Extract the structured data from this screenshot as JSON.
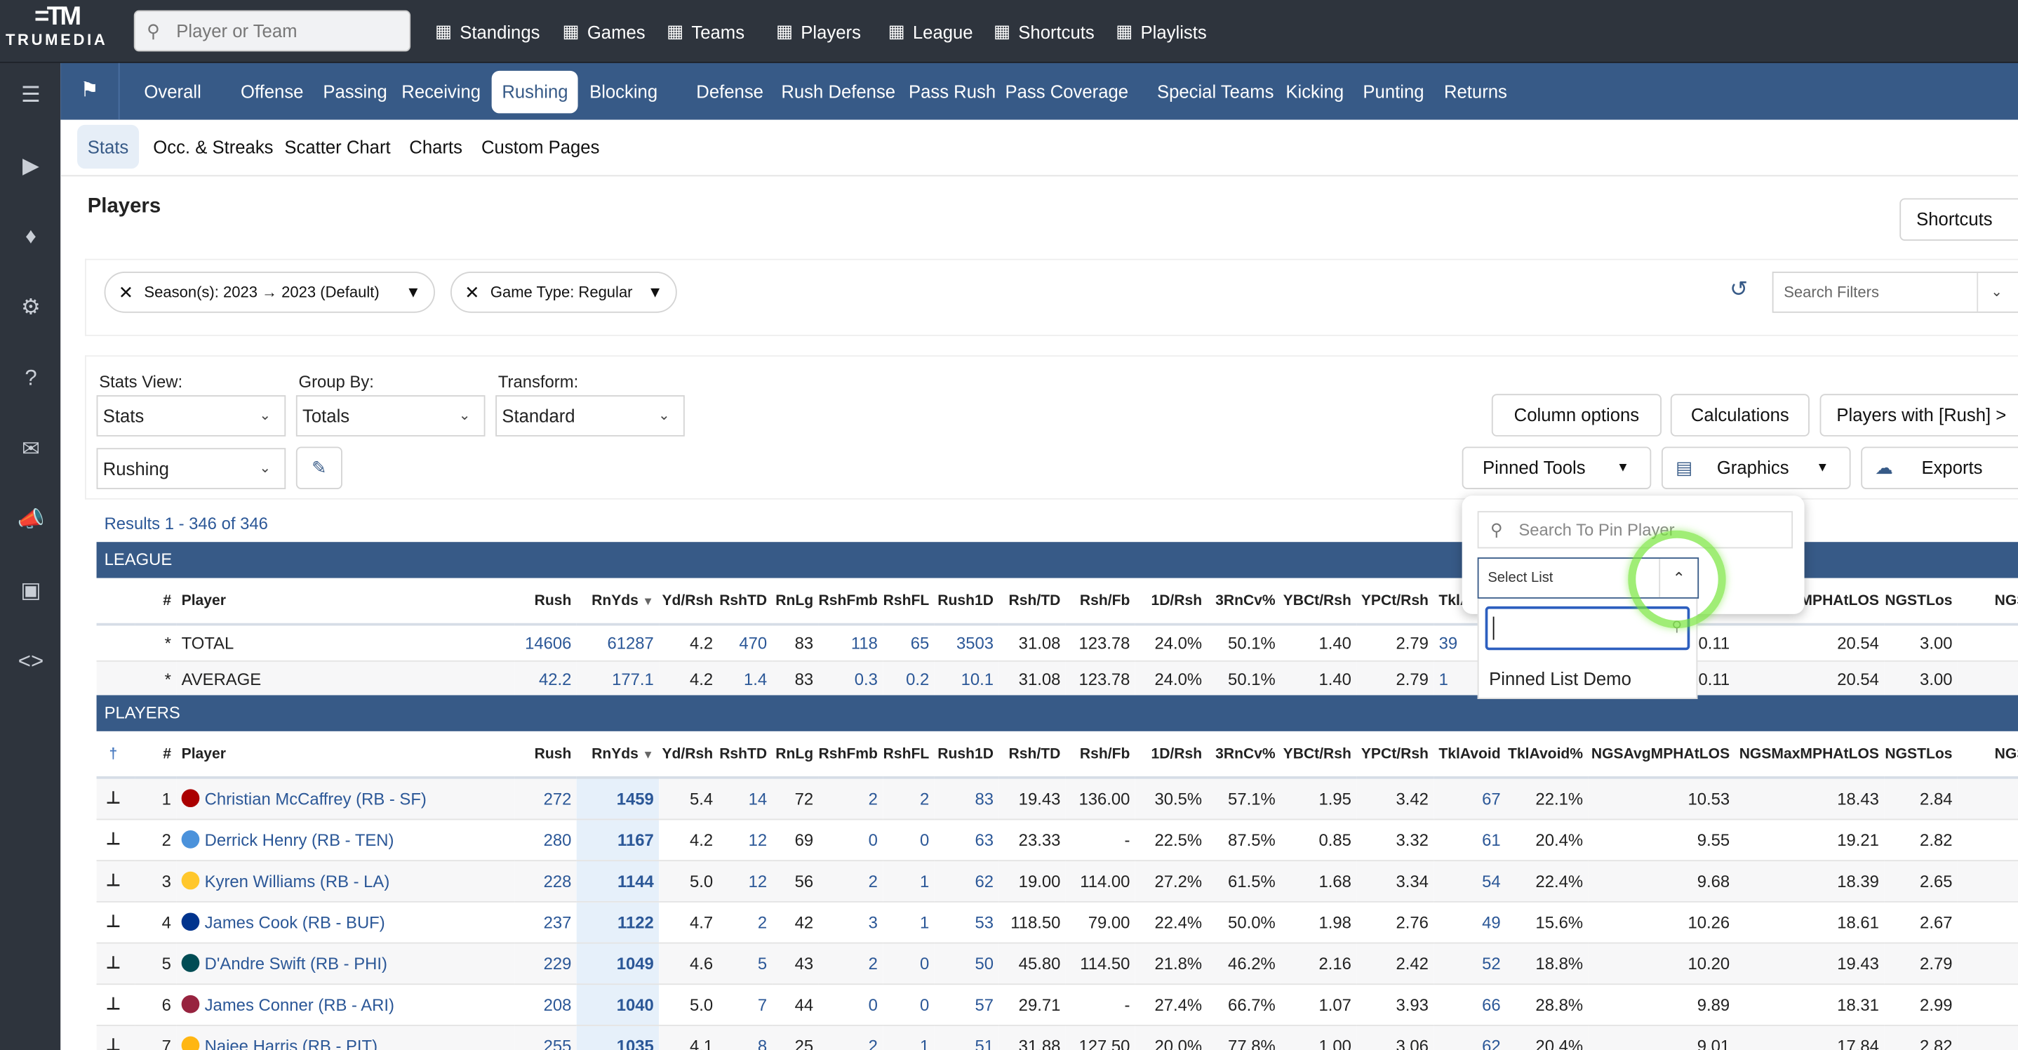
{
  "brand": {
    "logo_mark": "=TM",
    "logo_word": "TRUMEDIA"
  },
  "search": {
    "placeholder": "Player or Team"
  },
  "topnav": [
    {
      "label": "Standings",
      "icon": "list-icon"
    },
    {
      "label": "Games",
      "icon": "grid-icon"
    },
    {
      "label": "Teams",
      "icon": "users-icon"
    },
    {
      "label": "Players",
      "icon": "runner-icon"
    },
    {
      "label": "League",
      "icon": "league-icon"
    },
    {
      "label": "Shortcuts",
      "icon": "bookmark-icon"
    },
    {
      "label": "Playlists",
      "icon": "playlist-icon"
    }
  ],
  "tabs": [
    "Overall",
    "Offense",
    "Passing",
    "Receiving",
    "Rushing",
    "Blocking",
    "Defense",
    "Rush Defense",
    "Pass Rush",
    "Pass Coverage",
    "Special Teams",
    "Kicking",
    "Punting",
    "Returns"
  ],
  "active_tab": "Rushing",
  "subtabs": [
    "Stats",
    "Occ. & Streaks",
    "Scatter Chart",
    "Charts",
    "Custom Pages"
  ],
  "page_title": "Players",
  "shortcuts_label": "Shortcuts",
  "filters": [
    {
      "label": "Season(s): 2023 → 2023 (Default)"
    },
    {
      "label": "Game Type: Regular"
    }
  ],
  "search_filters_placeholder": "Search Filters",
  "controls": {
    "stats_view_label": "Stats View:",
    "stats_view": "Stats",
    "group_by_label": "Group By:",
    "group_by": "Totals",
    "transform_label": "Transform:",
    "transform": "Standard",
    "category": "Rushing"
  },
  "buttons": {
    "column_options": "Column options",
    "calculations": "Calculations",
    "players_with": "Players with [Rush] >",
    "pinned_tools": "Pinned Tools",
    "graphics": "Graphics",
    "exports": "Exports"
  },
  "results": "Results 1 - 346 of 346",
  "league_band": "LEAGUE",
  "players_band": "PLAYERS",
  "columns": [
    "#",
    "Player",
    "Rush",
    "RnYds",
    "Yd/Rsh",
    "RshTD",
    "RnLg",
    "RshFmb",
    "RshFL",
    "Rush1D",
    "Rsh/TD",
    "Rsh/Fb",
    "1D/Rsh",
    "3RnCv%",
    "YBCt/Rsh",
    "YPCt/Rsh",
    "TklAvoid",
    "TklAvoid%",
    "NGSAvgMPHAtLOS",
    "NGSMaxMPHAtLOS",
    "NGSTLos",
    "NGSAvg"
  ],
  "league_rows": [
    {
      "mark": "*",
      "name": "TOTAL",
      "vals": [
        "14606",
        "61287",
        "4.2",
        "470",
        "83",
        "118",
        "65",
        "3503",
        "31.08",
        "123.78",
        "24.0%",
        "50.1%",
        "1.40",
        "2.79",
        "39",
        "",
        "10.11",
        "20.54",
        "3.00",
        ""
      ]
    },
    {
      "mark": "*",
      "name": "AVERAGE",
      "vals": [
        "42.2",
        "177.1",
        "4.2",
        "1.4",
        "83",
        "0.3",
        "0.2",
        "10.1",
        "31.08",
        "123.78",
        "24.0%",
        "50.1%",
        "1.40",
        "2.79",
        "1",
        "",
        "10.11",
        "20.54",
        "3.00",
        ""
      ]
    }
  ],
  "players": [
    {
      "rank": "1",
      "name": "Christian McCaffrey (RB - SF)",
      "team_color": "#aa0000",
      "vals": [
        "272",
        "1459",
        "5.4",
        "14",
        "72",
        "2",
        "2",
        "83",
        "19.43",
        "136.00",
        "30.5%",
        "57.1%",
        "1.95",
        "3.42",
        "67",
        "22.1%",
        "10.53",
        "18.43",
        "2.84",
        ""
      ]
    },
    {
      "rank": "2",
      "name": "Derrick Henry (RB - TEN)",
      "team_color": "#4b92db",
      "vals": [
        "280",
        "1167",
        "4.2",
        "12",
        "69",
        "0",
        "0",
        "63",
        "23.33",
        "-",
        "22.5%",
        "87.5%",
        "0.85",
        "3.32",
        "61",
        "20.4%",
        "9.55",
        "19.21",
        "2.82",
        ""
      ]
    },
    {
      "rank": "3",
      "name": "Kyren Williams (RB - LA)",
      "team_color": "#ffc72c",
      "vals": [
        "228",
        "1144",
        "5.0",
        "12",
        "56",
        "2",
        "1",
        "62",
        "19.00",
        "114.00",
        "27.2%",
        "61.5%",
        "1.68",
        "3.34",
        "54",
        "22.4%",
        "9.68",
        "18.39",
        "2.65",
        ""
      ]
    },
    {
      "rank": "4",
      "name": "James Cook (RB - BUF)",
      "team_color": "#00338d",
      "vals": [
        "237",
        "1122",
        "4.7",
        "2",
        "42",
        "3",
        "1",
        "53",
        "118.50",
        "79.00",
        "22.4%",
        "50.0%",
        "1.98",
        "2.76",
        "49",
        "15.6%",
        "10.26",
        "18.61",
        "2.67",
        ""
      ]
    },
    {
      "rank": "5",
      "name": "D'Andre Swift (RB - PHI)",
      "team_color": "#004c54",
      "vals": [
        "229",
        "1049",
        "4.6",
        "5",
        "43",
        "2",
        "0",
        "50",
        "45.80",
        "114.50",
        "21.8%",
        "46.2%",
        "2.16",
        "2.42",
        "52",
        "18.8%",
        "10.20",
        "19.43",
        "2.79",
        ""
      ]
    },
    {
      "rank": "6",
      "name": "James Conner (RB - ARI)",
      "team_color": "#97233f",
      "vals": [
        "208",
        "1040",
        "5.0",
        "7",
        "44",
        "0",
        "0",
        "57",
        "29.71",
        "-",
        "27.4%",
        "66.7%",
        "1.07",
        "3.93",
        "66",
        "28.8%",
        "9.89",
        "18.31",
        "2.99",
        ""
      ]
    },
    {
      "rank": "7",
      "name": "Najee Harris (RB - PIT)",
      "team_color": "#ffb612",
      "vals": [
        "255",
        "1035",
        "4.1",
        "8",
        "25",
        "2",
        "1",
        "51",
        "31.88",
        "127.50",
        "20.0%",
        "77.8%",
        "1.00",
        "3.06",
        "62",
        "20.4%",
        "9.01",
        "17.84",
        "2.82",
        ""
      ]
    }
  ],
  "link_columns": [
    0,
    3,
    5,
    6,
    7,
    14
  ],
  "popup": {
    "search_placeholder": "Search To Pin Player",
    "select_placeholder": "Select List",
    "options": [
      "Pinned List Demo"
    ]
  },
  "colors": {
    "topbar": "#2e343d",
    "accent": "#375a87",
    "link": "#2b5797",
    "highlight": "#e6f0fa"
  }
}
